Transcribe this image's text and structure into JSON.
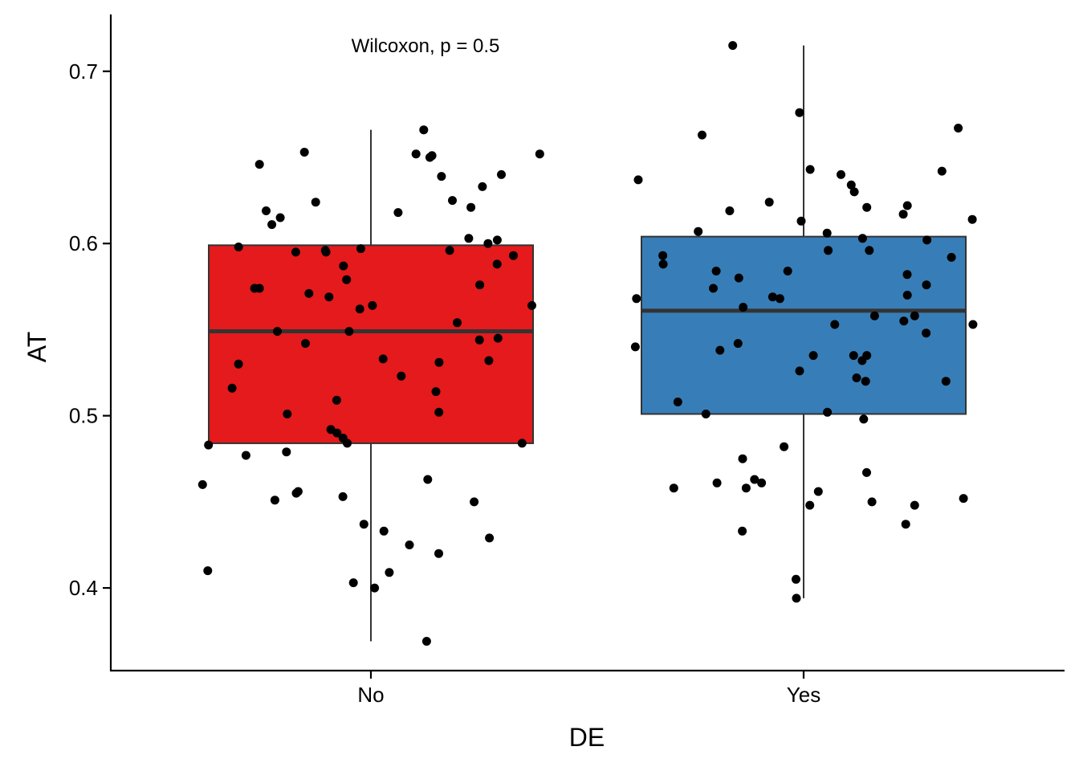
{
  "chart_data": {
    "type": "boxplot",
    "xlabel": "DE",
    "ylabel": "AT",
    "ylim": [
      0.352,
      0.733
    ],
    "yticks": [
      0.4,
      0.5,
      0.6,
      0.7
    ],
    "ytick_labels": [
      "0.4",
      "0.5",
      "0.6",
      "0.7"
    ],
    "grid": false,
    "legend": "none",
    "annotation": "Wilcoxon, p = 0.5",
    "categories": [
      "No",
      "Yes"
    ],
    "colors": {
      "No": "#E41A1C",
      "Yes": "#377EB8"
    },
    "boxes": [
      {
        "category": "No",
        "min": 0.369,
        "q1": 0.484,
        "median": 0.549,
        "q3": 0.599,
        "max": 0.666
      },
      {
        "category": "Yes",
        "min": 0.394,
        "q1": 0.501,
        "median": 0.561,
        "q3": 0.604,
        "max": 0.715
      }
    ],
    "points": [
      {
        "category": "No",
        "values": [
          0.666,
          0.653,
          0.652,
          0.652,
          0.651,
          0.65,
          0.646,
          0.64,
          0.639,
          0.633,
          0.625,
          0.624,
          0.621,
          0.619,
          0.618,
          0.615,
          0.611,
          0.603,
          0.602,
          0.6,
          0.598,
          0.597,
          0.596,
          0.596,
          0.595,
          0.595,
          0.593,
          0.588,
          0.587,
          0.579,
          0.576,
          0.574,
          0.574,
          0.571,
          0.569,
          0.564,
          0.564,
          0.562,
          0.554,
          0.549,
          0.549,
          0.545,
          0.544,
          0.542,
          0.533,
          0.532,
          0.531,
          0.53,
          0.523,
          0.516,
          0.514,
          0.509,
          0.502,
          0.501,
          0.492,
          0.49,
          0.487,
          0.484,
          0.484,
          0.483,
          0.479,
          0.477,
          0.463,
          0.46,
          0.456,
          0.455,
          0.453,
          0.451,
          0.45,
          0.437,
          0.433,
          0.429,
          0.425,
          0.42,
          0.41,
          0.409,
          0.403,
          0.4,
          0.369
        ]
      },
      {
        "category": "Yes",
        "values": [
          0.715,
          0.676,
          0.667,
          0.663,
          0.643,
          0.642,
          0.64,
          0.637,
          0.634,
          0.63,
          0.624,
          0.622,
          0.621,
          0.619,
          0.617,
          0.614,
          0.613,
          0.607,
          0.606,
          0.603,
          0.602,
          0.596,
          0.596,
          0.593,
          0.592,
          0.588,
          0.584,
          0.584,
          0.582,
          0.58,
          0.576,
          0.574,
          0.57,
          0.569,
          0.568,
          0.568,
          0.563,
          0.558,
          0.558,
          0.555,
          0.553,
          0.553,
          0.548,
          0.542,
          0.54,
          0.538,
          0.535,
          0.535,
          0.535,
          0.532,
          0.526,
          0.522,
          0.52,
          0.52,
          0.508,
          0.502,
          0.501,
          0.498,
          0.482,
          0.475,
          0.467,
          0.463,
          0.461,
          0.461,
          0.458,
          0.458,
          0.456,
          0.452,
          0.45,
          0.448,
          0.448,
          0.437,
          0.433,
          0.405,
          0.394
        ]
      }
    ]
  }
}
